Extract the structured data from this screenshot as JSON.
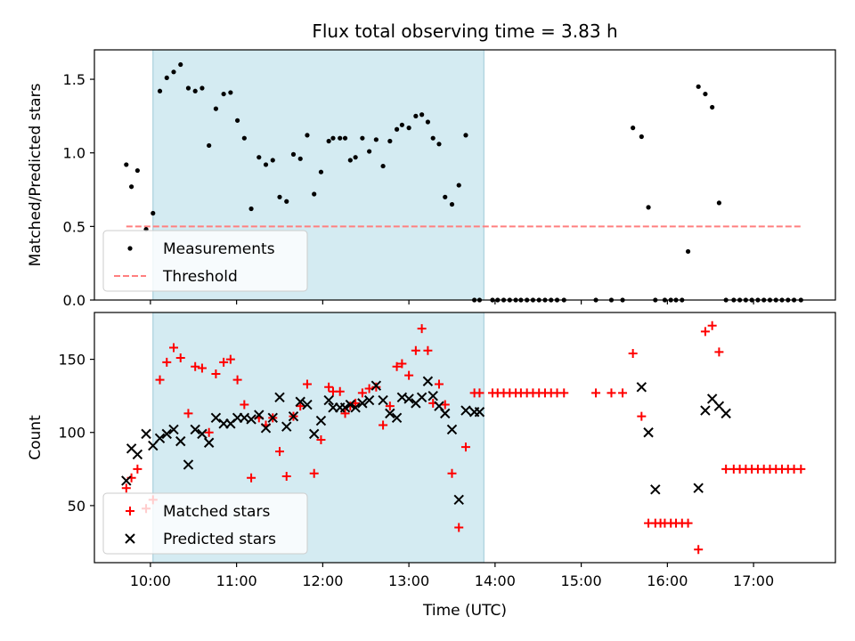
{
  "chart_data": {
    "type": "scatter",
    "title": "Flux total observing time = 3.83 h",
    "xlabel": "Time (UTC)",
    "x_unit": "hours since 00:00 UTC",
    "xlim": [
      9.35,
      17.95
    ],
    "xticks": [
      {
        "value": 10,
        "label": "10:00"
      },
      {
        "value": 11,
        "label": "11:00"
      },
      {
        "value": 12,
        "label": "12:00"
      },
      {
        "value": 13,
        "label": "13:00"
      },
      {
        "value": 14,
        "label": "14:00"
      },
      {
        "value": 15,
        "label": "15:00"
      },
      {
        "value": 16,
        "label": "16:00"
      },
      {
        "value": 17,
        "label": "17:00"
      }
    ],
    "observing_span": [
      10.03,
      13.87
    ],
    "panels": [
      {
        "id": "ratio",
        "ylabel": "Matched/Predicted stars",
        "ylim": [
          0,
          1.7
        ],
        "yticks": [
          {
            "value": 0,
            "label": "0.0"
          },
          {
            "value": 0.5,
            "label": "0.5"
          },
          {
            "value": 1.0,
            "label": "1.0"
          },
          {
            "value": 1.5,
            "label": "1.5"
          }
        ],
        "legend": {
          "position": "lower-left",
          "entries": [
            {
              "label": "Measurements",
              "marker": "dot",
              "color": "#000000"
            },
            {
              "label": "Threshold",
              "marker": "dashed-line",
              "color": "#ff7f7f"
            }
          ]
        },
        "threshold": {
          "value": 0.5,
          "x_range": [
            9.72,
            17.55
          ]
        },
        "series": [
          {
            "name": "Measurements",
            "marker": "dot",
            "color": "#000000",
            "x": [
              9.72,
              9.78,
              9.85,
              9.95,
              10.03,
              10.11,
              10.19,
              10.27,
              10.35,
              10.44,
              10.52,
              10.6,
              10.68,
              10.76,
              10.85,
              10.93,
              11.01,
              11.09,
              11.17,
              11.26,
              11.34,
              11.42,
              11.5,
              11.58,
              11.66,
              11.74,
              11.82,
              11.9,
              11.98,
              12.07,
              12.12,
              12.2,
              12.26,
              12.32,
              12.38,
              12.46,
              12.54,
              12.62,
              12.7,
              12.78,
              12.86,
              12.92,
              13.0,
              13.08,
              13.15,
              13.22,
              13.28,
              13.35,
              13.42,
              13.5,
              13.58,
              13.66,
              13.76,
              13.82,
              13.97,
              14.03,
              14.1,
              14.17,
              14.24,
              14.3,
              14.37,
              14.44,
              14.51,
              14.58,
              14.65,
              14.72,
              14.8,
              15.17,
              15.35,
              15.48,
              15.6,
              15.7,
              15.78,
              15.86,
              15.97,
              16.04,
              16.1,
              16.17,
              16.24,
              16.36,
              16.44,
              16.52,
              16.6,
              16.68,
              16.77,
              16.84,
              16.91,
              16.98,
              17.05,
              17.12,
              17.19,
              17.26,
              17.33,
              17.4,
              17.47,
              17.55
            ],
            "y": [
              0.92,
              0.77,
              0.88,
              0.48,
              0.59,
              1.42,
              1.51,
              1.55,
              1.6,
              1.44,
              1.42,
              1.44,
              1.05,
              1.3,
              1.4,
              1.41,
              1.22,
              1.1,
              0.62,
              0.97,
              0.92,
              0.95,
              0.7,
              0.67,
              0.99,
              0.96,
              1.12,
              0.72,
              0.87,
              1.08,
              1.1,
              1.1,
              1.1,
              0.95,
              0.97,
              1.1,
              1.01,
              1.09,
              0.91,
              1.08,
              1.16,
              1.19,
              1.17,
              1.25,
              1.26,
              1.21,
              1.1,
              1.06,
              0.7,
              0.65,
              0.78,
              1.12,
              0,
              0,
              0,
              0,
              0,
              0,
              0,
              0,
              0,
              0,
              0,
              0,
              0,
              0,
              0,
              0,
              0,
              0,
              1.17,
              1.11,
              0.63,
              0,
              0,
              0,
              0,
              0,
              0.33,
              1.45,
              1.4,
              1.31,
              0.66,
              0,
              0,
              0,
              0,
              0,
              0,
              0,
              0,
              0,
              0,
              0,
              0,
              0
            ]
          }
        ]
      },
      {
        "id": "counts",
        "ylabel": "Count",
        "ylim": [
          11,
          182
        ],
        "yticks": [
          {
            "value": 50,
            "label": "50"
          },
          {
            "value": 100,
            "label": "100"
          },
          {
            "value": 150,
            "label": "150"
          }
        ],
        "legend": {
          "position": "lower-left",
          "entries": [
            {
              "label": "Matched stars",
              "marker": "plus",
              "color": "#ff0000"
            },
            {
              "label": "Predicted stars",
              "marker": "x",
              "color": "#000000"
            }
          ]
        },
        "series": [
          {
            "name": "Matched stars",
            "marker": "plus",
            "color": "#ff0000",
            "x": [
              9.72,
              9.78,
              9.85,
              9.95,
              10.03,
              10.11,
              10.19,
              10.27,
              10.35,
              10.44,
              10.52,
              10.6,
              10.68,
              10.76,
              10.85,
              10.93,
              11.01,
              11.09,
              11.17,
              11.26,
              11.34,
              11.42,
              11.5,
              11.58,
              11.66,
              11.74,
              11.82,
              11.9,
              11.98,
              12.07,
              12.12,
              12.2,
              12.26,
              12.32,
              12.38,
              12.46,
              12.54,
              12.62,
              12.7,
              12.78,
              12.86,
              12.92,
              13.0,
              13.08,
              13.15,
              13.22,
              13.28,
              13.35,
              13.42,
              13.5,
              13.58,
              13.66,
              13.76,
              13.82,
              13.97,
              14.03,
              14.1,
              14.17,
              14.24,
              14.3,
              14.37,
              14.44,
              14.51,
              14.58,
              14.65,
              14.72,
              14.8,
              15.17,
              15.35,
              15.48,
              15.6,
              15.7,
              15.78,
              15.86,
              15.92,
              15.97,
              16.04,
              16.1,
              16.17,
              16.24,
              16.36,
              16.44,
              16.52,
              16.6,
              16.68,
              16.77,
              16.84,
              16.91,
              16.98,
              17.05,
              17.12,
              17.19,
              17.26,
              17.33,
              17.4,
              17.47,
              17.55
            ],
            "y": [
              62,
              69,
              75,
              48,
              54,
              136,
              148,
              158,
              151,
              113,
              145,
              144,
              100,
              140,
              148,
              150,
              136,
              119,
              69,
              110,
              105,
              110,
              87,
              70,
              111,
              118,
              133,
              72,
              95,
              131,
              128,
              128,
              113,
              118,
              120,
              127,
              130,
              131,
              105,
              118,
              145,
              147,
              139,
              156,
              171,
              156,
              120,
              133,
              119,
              72,
              35,
              90,
              127,
              127,
              127,
              127,
              127,
              127,
              127,
              127,
              127,
              127,
              127,
              127,
              127,
              127,
              127,
              127,
              127,
              127,
              154,
              111,
              38,
              38,
              38,
              38,
              38,
              38,
              38,
              38,
              20,
              169,
              173,
              155,
              75,
              75,
              75,
              75,
              75,
              75,
              75,
              75,
              75,
              75,
              75,
              75,
              75
            ]
          },
          {
            "name": "Predicted stars",
            "marker": "x",
            "color": "#000000",
            "x": [
              9.72,
              9.78,
              9.85,
              9.95,
              10.03,
              10.11,
              10.19,
              10.27,
              10.35,
              10.44,
              10.52,
              10.6,
              10.68,
              10.76,
              10.85,
              10.93,
              11.01,
              11.09,
              11.17,
              11.26,
              11.34,
              11.42,
              11.5,
              11.58,
              11.66,
              11.74,
              11.82,
              11.9,
              11.98,
              12.07,
              12.12,
              12.2,
              12.26,
              12.32,
              12.38,
              12.46,
              12.54,
              12.62,
              12.7,
              12.78,
              12.86,
              12.92,
              13.0,
              13.08,
              13.15,
              13.22,
              13.28,
              13.35,
              13.42,
              13.5,
              13.58,
              13.66,
              13.76,
              13.82,
              15.7,
              15.78,
              15.86,
              16.36,
              16.44,
              16.52,
              16.6,
              16.68
            ],
            "y": [
              67,
              89,
              85,
              99,
              91,
              96,
              99,
              102,
              94,
              78,
              102,
              99,
              93,
              110,
              106,
              106,
              110,
              110,
              109,
              112,
              103,
              110,
              124,
              104,
              111,
              121,
              119,
              99,
              108,
              122,
              117,
              117,
              117,
              119,
              117,
              120,
              122,
              132,
              122,
              113,
              110,
              124,
              123,
              120,
              124,
              135,
              125,
              118,
              113,
              102,
              54,
              115,
              114,
              114,
              131,
              100,
              61,
              62,
              115,
              123,
              118,
              113
            ]
          }
        ]
      }
    ]
  }
}
